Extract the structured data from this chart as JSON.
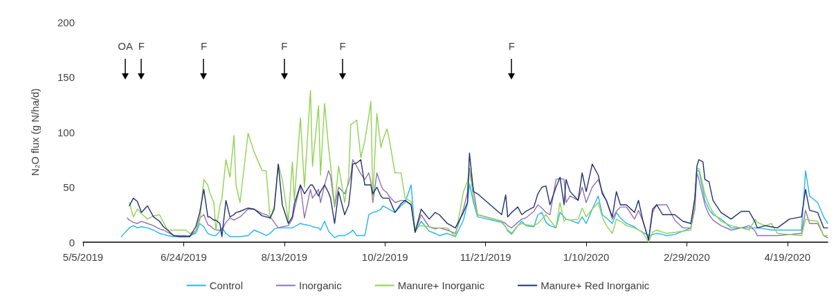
{
  "chart_data": {
    "type": "line",
    "ylabel": "N₂O flux (g N/ha/d)",
    "x": [
      "2019-05-24",
      "2019-05-25",
      "2019-05-27",
      "2019-05-28",
      "2019-05-30",
      "2019-06-01",
      "2019-06-03",
      "2019-06-06",
      "2019-06-09",
      "2019-06-12",
      "2019-06-14",
      "2019-06-16",
      "2019-06-19",
      "2019-06-22",
      "2019-06-25",
      "2019-06-27",
      "2019-06-30",
      "2019-07-02",
      "2019-07-04",
      "2019-07-06",
      "2019-07-07",
      "2019-07-09",
      "2019-07-10",
      "2019-07-12",
      "2019-07-13",
      "2019-07-15",
      "2019-07-17",
      "2019-07-19",
      "2019-07-20",
      "2019-07-22",
      "2019-07-26",
      "2019-07-29",
      "2019-08-02",
      "2019-08-04",
      "2019-08-06",
      "2019-08-08",
      "2019-08-10",
      "2019-08-12",
      "2019-08-15",
      "2019-08-17",
      "2019-08-18",
      "2019-08-21",
      "2019-08-23",
      "2019-08-26",
      "2019-08-27",
      "2019-08-30",
      "2019-08-31",
      "2019-09-02",
      "2019-09-04",
      "2019-09-05",
      "2019-09-07",
      "2019-09-09",
      "2019-09-12",
      "2019-09-14",
      "2019-09-15",
      "2019-09-16",
      "2019-09-18",
      "2019-09-20",
      "2019-09-22",
      "2019-09-24",
      "2019-09-25",
      "2019-09-26",
      "2019-09-28",
      "2019-09-30",
      "2019-10-01",
      "2019-10-03",
      "2019-10-04",
      "2019-10-07",
      "2019-10-10",
      "2019-10-12",
      "2019-10-15",
      "2019-10-17",
      "2019-10-20",
      "2019-10-24",
      "2019-10-27",
      "2019-10-29",
      "2019-11-02",
      "2019-11-06",
      "2019-11-10",
      "2019-11-12",
      "2019-11-13",
      "2019-11-15",
      "2019-11-17",
      "2019-11-29",
      "2019-12-01",
      "2019-12-02",
      "2019-12-04",
      "2019-12-07",
      "2019-12-09",
      "2019-12-11",
      "2019-12-15",
      "2019-12-17",
      "2019-12-19",
      "2019-12-21",
      "2019-12-23",
      "2019-12-26",
      "2019-12-28",
      "2019-12-30",
      "2019-12-31",
      "2020-01-02",
      "2020-01-06",
      "2020-01-08",
      "2020-01-10",
      "2020-01-13",
      "2020-01-16",
      "2020-01-18",
      "2020-01-20",
      "2020-01-23",
      "2020-01-25",
      "2020-01-27",
      "2020-01-30",
      "2020-02-03",
      "2020-02-05",
      "2020-02-07",
      "2020-02-10",
      "2020-02-12",
      "2020-02-14",
      "2020-02-17",
      "2020-02-19",
      "2020-02-23",
      "2020-02-27",
      "2020-03-02",
      "2020-03-04",
      "2020-03-05",
      "2020-03-06",
      "2020-03-08",
      "2020-03-09",
      "2020-03-11",
      "2020-03-13",
      "2020-03-17",
      "2020-03-22",
      "2020-03-27",
      "2020-03-31",
      "2020-04-03",
      "2020-04-04",
      "2020-04-08",
      "2020-04-11",
      "2020-04-14",
      "2020-04-20",
      "2020-04-26",
      "2020-04-28",
      "2020-04-30",
      "2020-05-04",
      "2020-05-07",
      "2020-05-09"
    ],
    "series": [
      {
        "name": "Control",
        "color": "#1fb5f0",
        "values": [
          5,
          7,
          11,
          13,
          15,
          13,
          14,
          13,
          11,
          8,
          7,
          6,
          5,
          5,
          5,
          6,
          8,
          17,
          14,
          8,
          7,
          6,
          6,
          10,
          13,
          8,
          5,
          5,
          5,
          5,
          6,
          11,
          8,
          6,
          8,
          12,
          13,
          13,
          13,
          13,
          14,
          17,
          16,
          15,
          14,
          13,
          11,
          19,
          10,
          8,
          4,
          6,
          6,
          8,
          9,
          11,
          6,
          6,
          6,
          25,
          26,
          27,
          28,
          30,
          33,
          31,
          30,
          27,
          33,
          36,
          52,
          9,
          19,
          10,
          8,
          6,
          8,
          5,
          20,
          35,
          53,
          36,
          23,
          18,
          14,
          11,
          8,
          15,
          19,
          15,
          14,
          25,
          27,
          18,
          15,
          13,
          27,
          23,
          21,
          20,
          17,
          23,
          17,
          30,
          42,
          25,
          22,
          17,
          27,
          22,
          17,
          14,
          11,
          9,
          6,
          7,
          8,
          7,
          6,
          7,
          10,
          13,
          40,
          65,
          65,
          48,
          38,
          30,
          25,
          21,
          13,
          13,
          13,
          13,
          13,
          12,
          11,
          11,
          11,
          11,
          65,
          42,
          36,
          23,
          17
        ]
      },
      {
        "name": "Inorganic",
        "color": "#8e70b0",
        "values": [
          null,
          null,
          22,
          20,
          18,
          17,
          19,
          17,
          15,
          12,
          11,
          9,
          6,
          6,
          6,
          5,
          10,
          22,
          25,
          16,
          15,
          12,
          11,
          11,
          11,
          18,
          22,
          20,
          21,
          23,
          30,
          30,
          26,
          25,
          23,
          18,
          13,
          14,
          15,
          21,
          30,
          52,
          22,
          48,
          40,
          48,
          36,
          52,
          65,
          60,
          32,
          50,
          44,
          54,
          60,
          75,
          69,
          62,
          57,
          63,
          55,
          36,
          63,
          52,
          48,
          45,
          42,
          36,
          38,
          38,
          34,
          9,
          25,
          14,
          12,
          13,
          11,
          8,
          30,
          45,
          67,
          48,
          25,
          19,
          17,
          15,
          13,
          18,
          21,
          22,
          28,
          34,
          31,
          27,
          25,
          57,
          58,
          57,
          36,
          42,
          38,
          50,
          36,
          50,
          57,
          46,
          38,
          21,
          28,
          32,
          32,
          21,
          29,
          20,
          2,
          27,
          34,
          34,
          34,
          20,
          13,
          13,
          30,
          63,
          57,
          42,
          34,
          25,
          20,
          15,
          11,
          13,
          15,
          10,
          6,
          6,
          6,
          6,
          7,
          8,
          29,
          17,
          17,
          6,
          4
        ]
      },
      {
        "name": "Manure+ Inorganic",
        "color": "#8fd14f",
        "values": [
          null,
          null,
          null,
          36,
          23,
          30,
          26,
          21,
          24,
          25,
          18,
          11,
          11,
          11,
          11,
          8,
          10,
          20,
          57,
          52,
          45,
          36,
          11,
          33,
          40,
          75,
          59,
          97,
          52,
          36,
          99,
          82,
          65,
          65,
          21,
          33,
          71,
          57,
          19,
          73,
          38,
          113,
          50,
          138,
          69,
          124,
          61,
          126,
          86,
          70,
          33,
          69,
          36,
          60,
          107,
          108,
          111,
          77,
          92,
          115,
          128,
          40,
          117,
          86,
          93,
          103,
          95,
          63,
          63,
          40,
          37,
          13,
          15,
          14,
          13,
          13,
          13,
          5,
          46,
          55,
          65,
          40,
          25,
          19,
          14,
          10,
          7,
          15,
          17,
          16,
          15,
          17,
          21,
          25,
          20,
          13,
          36,
          19,
          21,
          20,
          21,
          31,
          23,
          30,
          36,
          23,
          15,
          8,
          21,
          19,
          15,
          13,
          11,
          9,
          0,
          9,
          11,
          9,
          8,
          9,
          10,
          11,
          40,
          67,
          67,
          52,
          44,
          34,
          27,
          19,
          15,
          13,
          11,
          21,
          18,
          15,
          17,
          8,
          7,
          6,
          21,
          20,
          19,
          6,
          6
        ]
      },
      {
        "name": "Manure+ Red Inorganic",
        "color": "#1f2f6e",
        "values": [
          null,
          null,
          null,
          33,
          40,
          37,
          27,
          33,
          23,
          19,
          14,
          11,
          6,
          5,
          5,
          5,
          14,
          27,
          48,
          23,
          23,
          20,
          20,
          17,
          5,
          38,
          23,
          25,
          27,
          28,
          31,
          30,
          24,
          23,
          22,
          30,
          71,
          34,
          17,
          23,
          35,
          52,
          44,
          52,
          52,
          42,
          46,
          52,
          45,
          40,
          17,
          46,
          25,
          34,
          50,
          71,
          72,
          75,
          52,
          52,
          52,
          44,
          50,
          42,
          40,
          40,
          40,
          27,
          35,
          38,
          34,
          9,
          30,
          21,
          27,
          25,
          17,
          13,
          27,
          36,
          81,
          46,
          44,
          25,
          43,
          23,
          27,
          32,
          25,
          28,
          32,
          44,
          50,
          51,
          34,
          50,
          59,
          34,
          57,
          46,
          38,
          63,
          46,
          71,
          61,
          44,
          38,
          23,
          46,
          34,
          34,
          27,
          38,
          21,
          2,
          30,
          34,
          25,
          25,
          25,
          19,
          17,
          40,
          69,
          75,
          73,
          57,
          55,
          38,
          27,
          21,
          28,
          28,
          18,
          13,
          15,
          14,
          13,
          21,
          23,
          48,
          29,
          27,
          13,
          13
        ]
      }
    ],
    "xlim": [
      "2019-05-05",
      "2020-05-09"
    ],
    "xticks": [
      {
        "value": "2019-05-05",
        "label": "5/5/2019"
      },
      {
        "value": "2019-06-24",
        "label": "6/24/2019"
      },
      {
        "value": "2019-08-13",
        "label": "8/13/2019"
      },
      {
        "value": "2019-10-02",
        "label": "10/2/2019"
      },
      {
        "value": "2019-11-21",
        "label": "11/21/2019"
      },
      {
        "value": "2020-01-10",
        "label": "1/10/2020"
      },
      {
        "value": "2020-02-29",
        "label": "2/29/2020"
      },
      {
        "value": "2020-04-19",
        "label": "4/19/2020"
      }
    ],
    "ylim": [
      0,
      200
    ],
    "yticks": [
      0,
      50,
      100,
      150,
      200
    ],
    "ref_lines": [
      {
        "axis": "x",
        "value": "2019-05-26",
        "label": "OA"
      },
      {
        "axis": "x",
        "value": "2019-06-03",
        "label": "F"
      },
      {
        "axis": "x",
        "value": "2019-07-04",
        "label": "F"
      },
      {
        "axis": "x",
        "value": "2019-08-13",
        "label": "F"
      },
      {
        "axis": "x",
        "value": "2019-09-11",
        "label": "F"
      },
      {
        "axis": "x",
        "value": "2019-12-04",
        "label": "F"
      }
    ],
    "grid": false,
    "legend": "bottom",
    "marker": "none",
    "line_style": "solid"
  }
}
